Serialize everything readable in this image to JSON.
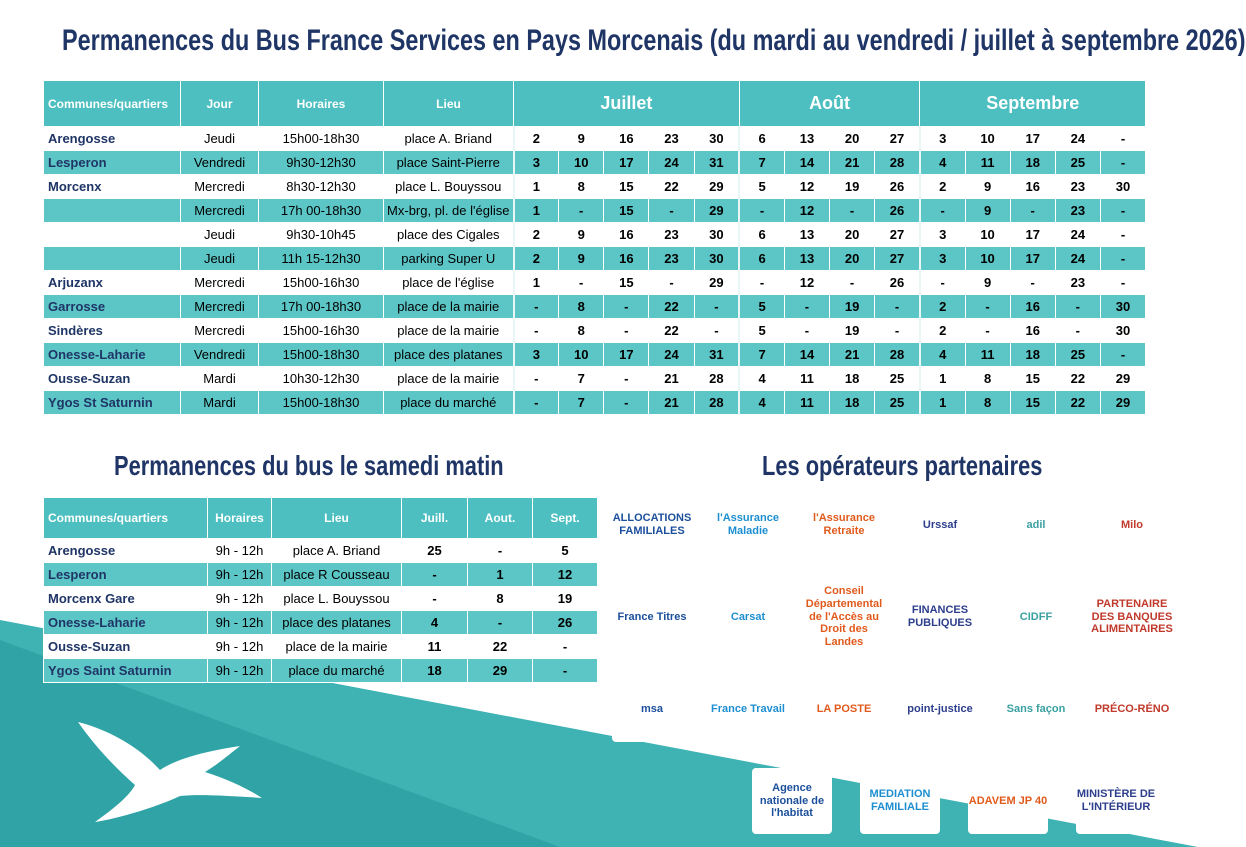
{
  "title": "Permanences du Bus France Services en Pays Morcenais (du mardi au vendredi / juillet à septembre 2026)",
  "schedule": {
    "header": [
      "Communes/quartiers",
      "Jour",
      "Horaires",
      "Lieu"
    ],
    "months": [
      "Juillet",
      "Août",
      "Septembre"
    ],
    "rows": [
      {
        "commune": "Arengosse",
        "jour": "Jeudi",
        "horaires": "15h00-18h30",
        "lieu": "place A. Briand",
        "dates": [
          [
            "2",
            "9",
            "16",
            "23",
            "30"
          ],
          [
            "6",
            "13",
            "20",
            "27"
          ],
          [
            "3",
            "10",
            "17",
            "24",
            "-"
          ]
        ]
      },
      {
        "commune": "Lesperon",
        "jour": "Vendredi",
        "horaires": "9h30-12h30",
        "lieu": "place Saint-Pierre",
        "dates": [
          [
            "3",
            "10",
            "17",
            "24",
            "31"
          ],
          [
            "7",
            "14",
            "21",
            "28"
          ],
          [
            "4",
            "11",
            "18",
            "25",
            "-"
          ]
        ]
      },
      {
        "commune": "Morcenx",
        "jour": "Mercredi",
        "horaires": "8h30-12h30",
        "lieu": "place L. Bouyssou",
        "dates": [
          [
            "1",
            "8",
            "15",
            "22",
            "29"
          ],
          [
            "5",
            "12",
            "19",
            "26"
          ],
          [
            "2",
            "9",
            "16",
            "23",
            "30"
          ]
        ]
      },
      {
        "commune": null,
        "jour": "Mercredi",
        "horaires": "17h 00-18h30",
        "lieu": "Mx-brg, pl. de l'église",
        "dates": [
          [
            "1",
            "-",
            "15",
            "-",
            "29"
          ],
          [
            "-",
            "12",
            "-",
            "26"
          ],
          [
            "-",
            "9",
            "-",
            "23",
            "-"
          ]
        ]
      },
      {
        "commune": null,
        "jour": "Jeudi",
        "horaires": "9h30-10h45",
        "lieu": "place  des Cigales",
        "dates": [
          [
            "2",
            "9",
            "16",
            "23",
            "30"
          ],
          [
            "6",
            "13",
            "20",
            "27"
          ],
          [
            "3",
            "10",
            "17",
            "24",
            "-"
          ]
        ]
      },
      {
        "commune": null,
        "jour": "Jeudi",
        "horaires": "11h 15-12h30",
        "lieu": "parking Super U",
        "dates": [
          [
            "2",
            "9",
            "16",
            "23",
            "30"
          ],
          [
            "6",
            "13",
            "20",
            "27"
          ],
          [
            "3",
            "10",
            "17",
            "24",
            "-"
          ]
        ]
      },
      {
        "commune": "Arjuzanx",
        "jour": "Mercredi",
        "horaires": "15h00-16h30",
        "lieu": "place de l'église",
        "dates": [
          [
            "1",
            "-",
            "15",
            "-",
            "29"
          ],
          [
            "-",
            "12",
            "-",
            "26"
          ],
          [
            "-",
            "9",
            "-",
            "23",
            "-"
          ]
        ]
      },
      {
        "commune": "Garrosse",
        "jour": "Mercredi",
        "horaires": "17h 00-18h30",
        "lieu": "place de la mairie",
        "dates": [
          [
            "-",
            "8",
            "-",
            "22",
            "-"
          ],
          [
            "5",
            "-",
            "19",
            "-"
          ],
          [
            "2",
            "-",
            "16",
            "-",
            "30"
          ]
        ]
      },
      {
        "commune": "Sindères",
        "jour": "Mercredi",
        "horaires": "15h00-16h30",
        "lieu": "place de la mairie",
        "dates": [
          [
            "-",
            "8",
            "-",
            "22",
            "-"
          ],
          [
            "5",
            "-",
            "19",
            "-"
          ],
          [
            "2",
            "-",
            "16",
            "-",
            "30"
          ]
        ]
      },
      {
        "commune": "Onesse-Laharie",
        "jour": "Vendredi",
        "horaires": "15h00-18h30",
        "lieu": "place des platanes",
        "dates": [
          [
            "3",
            "10",
            "17",
            "24",
            "31"
          ],
          [
            "7",
            "14",
            "21",
            "28"
          ],
          [
            "4",
            "11",
            "18",
            "25",
            "-"
          ]
        ]
      },
      {
        "commune": "Ousse-Suzan",
        "jour": "Mardi",
        "horaires": "10h30-12h30",
        "lieu": "place de la mairie",
        "dates": [
          [
            "-",
            "7",
            "-",
            "21",
            "28"
          ],
          [
            "4",
            "11",
            "18",
            "25"
          ],
          [
            "1",
            "8",
            "15",
            "22",
            "29"
          ]
        ]
      },
      {
        "commune": "Ygos St Saturnin",
        "jour": "Mardi",
        "horaires": "15h00-18h30",
        "lieu": "place du marché",
        "dates": [
          [
            "-",
            "7",
            "-",
            "21",
            "28"
          ],
          [
            "4",
            "11",
            "18",
            "25"
          ],
          [
            "1",
            "8",
            "15",
            "22",
            "29"
          ]
        ]
      }
    ]
  },
  "saturday": {
    "title": "Permanences du bus le samedi matin",
    "header": [
      "Communes/quartiers",
      "Horaires",
      "Lieu",
      "Juill.",
      "Aout.",
      "Sept."
    ],
    "rows": [
      [
        "Arengosse",
        "9h - 12h",
        "place A. Briand",
        "25",
        "-",
        "5"
      ],
      [
        "Lesperon",
        "9h - 12h",
        "place R Cousseau",
        "-",
        "1",
        "12"
      ],
      [
        "Morcenx Gare",
        "9h - 12h",
        "place L. Bouyssou",
        "-",
        "8",
        "19"
      ],
      [
        "Onesse-Laharie",
        "9h - 12h",
        "place des platanes",
        "4",
        "-",
        "26"
      ],
      [
        "Ousse-Suzan",
        "9h - 12h",
        "place de la mairie",
        "11",
        "22",
        "-"
      ],
      [
        "Ygos Saint Saturnin",
        "9h - 12h",
        "place du marché",
        "18",
        "29",
        "-"
      ]
    ]
  },
  "partners": {
    "title": "Les opérateurs partenaires",
    "logos": [
      "ALLOCATIONS FAMILIALES",
      "l'Assurance Maladie",
      "l'Assurance Retraite",
      "Urssaf",
      "adil",
      "Milo",
      "France Titres",
      "Carsat",
      "Conseil Départemental de l'Accès au Droit des Landes",
      "FINANCES PUBLIQUES",
      "CIDFF",
      "PARTENAIRE DES BANQUES ALIMENTAIRES",
      "msa",
      "France Travail",
      "LA POSTE",
      "point-justice",
      "Sans façon",
      "PRÉCO-RÉNO",
      "Agence nationale de l'habitat",
      "MEDIATION FAMILIALE",
      "ADAVEM JP 40",
      "MINISTÈRE DE L'INTÉRIEUR"
    ]
  }
}
